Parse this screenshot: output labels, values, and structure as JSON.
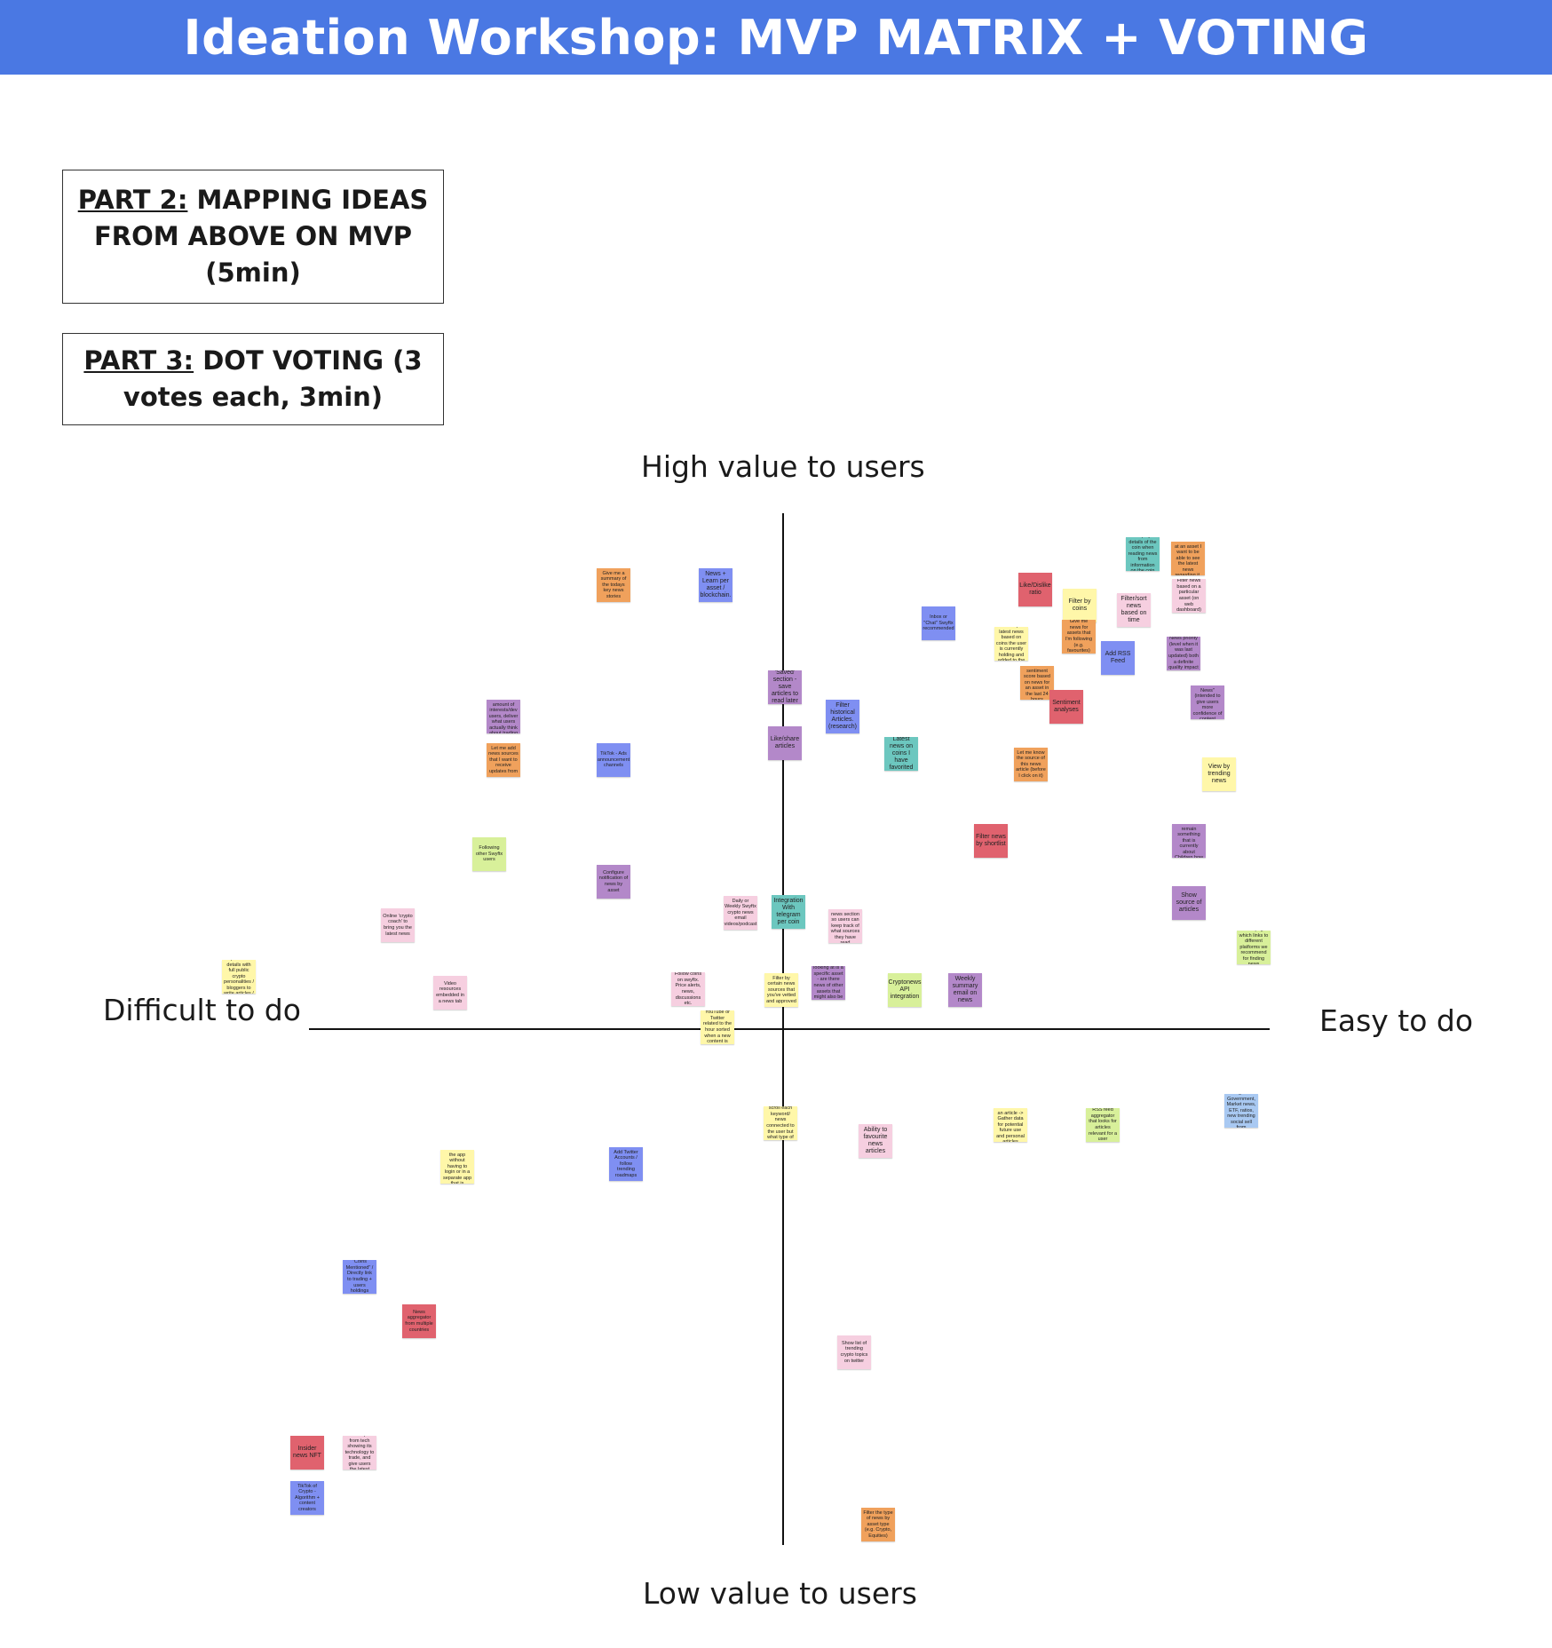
{
  "header": {
    "title": "Ideation Workshop: MVP MATRIX + VOTING",
    "color": "#4a78e3"
  },
  "parts": {
    "part2": {
      "label": "PART 2:",
      "text": " MAPPING IDEAS FROM ABOVE ON MVP (5min)"
    },
    "part3": {
      "label": "PART 3:",
      "text": " DOT VOTING (3 votes each, 3min)"
    }
  },
  "axes": {
    "top": "High value to users",
    "bottom": "Low value to users",
    "left": "Difficult to do",
    "right": "Easy to do"
  },
  "notes": [
    {
      "name": "note-summary-todays-news",
      "text": "Give me a summary of the todays key news stories",
      "color": "orange"
    },
    {
      "name": "note-news-learn-per-asset",
      "text": "News + Learn per asset / blockchain.",
      "color": "blue",
      "big": true
    },
    {
      "name": "note-display-details-coin",
      "text": "Display details of the coin when reading news from information on the coin",
      "color": "teal"
    },
    {
      "name": "note-latest-news-regarding-it",
      "text": "When I look at an asset I want to be able to see the latest news regarding it.",
      "color": "orange"
    },
    {
      "name": "note-like-dislike-ratio",
      "text": "Like/Dislike ratio",
      "color": "red",
      "big": true
    },
    {
      "name": "note-filter-by-coins",
      "text": "Filter by coins",
      "color": "yellow",
      "big": true
    },
    {
      "name": "note-filter-sort-news-time",
      "text": "Filter/sort news based on time",
      "color": "pink",
      "big": true
    },
    {
      "name": "note-filter-news-asset",
      "text": "Filter news based on a particular asset (on web dashboard)",
      "color": "pink"
    },
    {
      "name": "note-inbox-chat-swyftx",
      "text": "Inbox or \"Chat\" Swyftx recommended",
      "color": "blue"
    },
    {
      "name": "note-personalised-filter",
      "text": "Have a \"Personalised\" filter that pulls latest news based on coins the user is currently holding and added to the port it watchlist",
      "color": "yellow"
    },
    {
      "name": "note-give-me-news-following",
      "text": "Give me news for assets that I'm following (e.g. favourites)",
      "color": "orange"
    },
    {
      "name": "note-add-rss-feed",
      "text": "Add RSS Feed",
      "color": "blue",
      "big": true
    },
    {
      "name": "note-news-priorit-alerts",
      "text": "News priority (level when it was last updated) both a definite quality impact",
      "color": "purple"
    },
    {
      "name": "note-saved-section",
      "text": "'Saved' section - save articles to read later",
      "color": "purple",
      "big": true
    },
    {
      "name": "note-sentiment-score",
      "text": "Give a sentiment score based on news for an asset in the last 24 hours",
      "color": "orange"
    },
    {
      "name": "note-sentiment-analyses",
      "text": "Sentiment analyses",
      "color": "red",
      "big": true
    },
    {
      "name": "note-verified-news",
      "text": "\"Verified News\" (intended to give users more confidence of content",
      "color": "purple"
    },
    {
      "name": "note-based-interests",
      "text": "Based on the amount of interests/dev users, deliver what users actually think about trading",
      "color": "purple"
    },
    {
      "name": "note-filter-historical",
      "text": "Filter historical Articles. (research)",
      "color": "blue",
      "big": true
    },
    {
      "name": "note-let-me-add-sources",
      "text": "Let me add news sources that I want to receive updates from",
      "color": "orange"
    },
    {
      "name": "note-tiktok-announcement",
      "text": "TikTok - Ads announcement channels",
      "color": "blue"
    },
    {
      "name": "note-like-share-articles",
      "text": "Like/share articles",
      "color": "purple",
      "big": true
    },
    {
      "name": "note-latest-news-favorited",
      "text": "Latest news on coins I have favorited",
      "color": "teal",
      "big": true
    },
    {
      "name": "note-let-me-know-source",
      "text": "Let me know the source of this news article (before I click on it)",
      "color": "orange"
    },
    {
      "name": "note-view-by-trending",
      "text": "View by trending news",
      "color": "yellow",
      "big": true
    },
    {
      "name": "note-following-other-users",
      "text": "Following other Swyftx users",
      "color": "green"
    },
    {
      "name": "note-filter-news-shortlist",
      "text": "Filter news by shortlist",
      "color": "red",
      "big": true
    },
    {
      "name": "note-would-love-easy-read",
      "text": "Would love easy to read - how do we remain something that is currently about Children how they start a focus?",
      "color": "purple"
    },
    {
      "name": "note-configure-notification",
      "text": "Configure notification of news by asset",
      "color": "purple"
    },
    {
      "name": "note-show-source-articles",
      "text": "Show source of articles",
      "color": "purple",
      "big": true
    },
    {
      "name": "note-online-crypto-coach",
      "text": "Online 'crypto coach' to bring you the latest news",
      "color": "pink"
    },
    {
      "name": "note-daily-weekly-swyftx",
      "text": "Daily or Weekly Swyftx crypto news email videos/podcast",
      "color": "pink"
    },
    {
      "name": "note-integration-telegram",
      "text": "Integration With telegram per coin",
      "color": "teal",
      "big": true
    },
    {
      "name": "note-read-unread-article",
      "text": "Read/Unread news section so users can keep track of what sources they have read",
      "color": "pink"
    },
    {
      "name": "note-news-page-links",
      "text": "\"News page\" which links to different platforms we recommend for finding news",
      "color": "green"
    },
    {
      "name": "note-clean-and-precise",
      "text": "Clean and precise details with full public crypto personalities / bloggers to write articles / videos for us",
      "color": "yellow"
    },
    {
      "name": "note-video-resources",
      "text": "Video resources embedded in a news tab",
      "color": "pink"
    },
    {
      "name": "note-follow-coins-swyftx",
      "text": "Follow coins on swyftx. Price alerts, news, discussions etc.",
      "color": "pink"
    },
    {
      "name": "note-filter-certain-sources",
      "text": "Filter by certain news sources that you've vetted and approved",
      "color": "yellow"
    },
    {
      "name": "note-what-im-looking-at",
      "text": "What I'm looking at is a specific asset - are there news of other assets that might also be relevant?",
      "color": "purple"
    },
    {
      "name": "note-cryptonews-api",
      "text": "Cryptonews API integration",
      "color": "green",
      "big": true
    },
    {
      "name": "note-weekly-summary-email",
      "text": "Weekly summary email on news",
      "color": "purple",
      "big": true
    },
    {
      "name": "note-integrate-youtube-twitter",
      "text": "Integrate with YouTube or Twitter related to the hour sorted when a new content is uploaded",
      "color": "yellow"
    },
    {
      "name": "note-filter-news-categories",
      "text": "Filter news by categories: Government, Market news, ETF, ratios, new trending social sell from international",
      "color": "lblue"
    },
    {
      "name": "note-spice-up-commentary",
      "text": "Spice commentary on news (a scroll each keyword/ news connected to the user but what type of user engagements are read",
      "color": "yellow"
    },
    {
      "name": "note-like-dislike-article",
      "text": "Like / dislike an article -> Gather data for potential future use and personal articles",
      "color": "yellow"
    },
    {
      "name": "note-rss-feed-aggregator",
      "text": "RSS feed aggregator that looks for articles relevant for a user",
      "color": "green"
    },
    {
      "name": "note-ability-favourite",
      "text": "Ability to favourite news articles",
      "color": "pink",
      "big": true
    },
    {
      "name": "note-have-personalised",
      "text": "Have personalised news available on the app without having to login or in a separate app that is connected to our trading app",
      "color": "yellow"
    },
    {
      "name": "note-add-twitter-accounts",
      "text": "Add Twitter Accounts / follow trending roadmaps",
      "color": "blue"
    },
    {
      "name": "note-coins-mentioned",
      "text": "\"Coins Mentioned\" / Directly link to trading + users holdings",
      "color": "blue"
    },
    {
      "name": "note-news-aggregator",
      "text": "News aggregator from multiple countries",
      "color": "red"
    },
    {
      "name": "note-show-trending-twitter",
      "text": "Show list of trending crypto topics on twitter",
      "color": "pink"
    },
    {
      "name": "note-insider-news-nft",
      "text": "Insider news NFT",
      "color": "red",
      "big": true
    },
    {
      "name": "note-virtual-crypto-news",
      "text": "Virtual crypto news inspired from tech showing its technology to trade, and give users the latest news",
      "color": "pink"
    },
    {
      "name": "note-tiktok-crypto-algorithm",
      "text": "TikTok of Crypto - Algorithm + content creators",
      "color": "blue"
    },
    {
      "name": "note-filter-type-of-news",
      "text": "Filter the type of news by asset type (e.g. Crypto, Equities)",
      "color": "orange"
    }
  ],
  "colors": {
    "yellow": "#fff7a9",
    "orange": "#f0a15c",
    "blue": "#7f8ff2",
    "purple": "#b388c9",
    "red": "#e0626e",
    "pink": "#f6cfe0",
    "teal": "#6cc7bf",
    "green": "#d8f09a",
    "lblue": "#a9c9f2"
  }
}
